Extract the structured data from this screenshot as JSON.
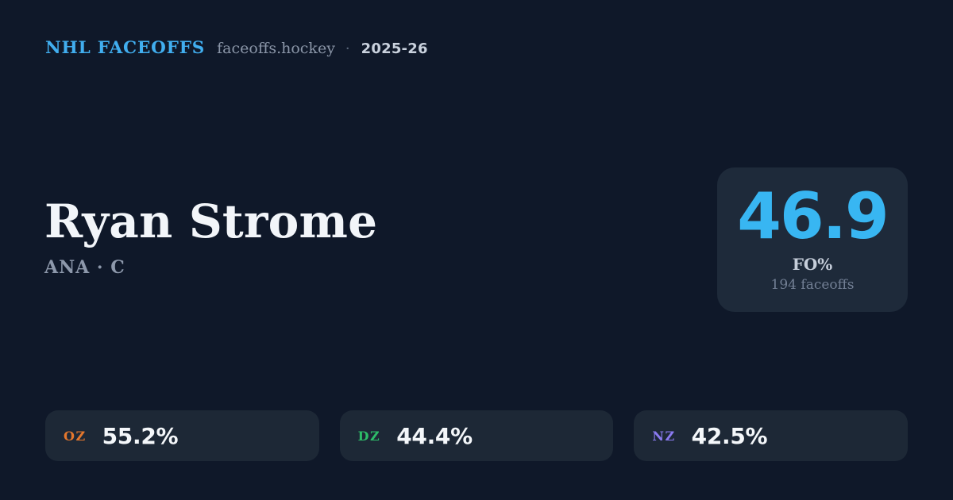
{
  "header": {
    "brand": "NHL FACEOFFS",
    "domain": "faceoffs.hockey",
    "separator": "·",
    "season": "2025-26"
  },
  "player": {
    "name": "Ryan Strome",
    "team": "ANA",
    "position": "C",
    "team_position": "ANA · C"
  },
  "fo_card": {
    "value": "46.9",
    "label": "FO%",
    "sub": "194 faceoffs"
  },
  "zones": [
    {
      "code": "OZ",
      "value": "55.2%",
      "color": "#e4772d"
    },
    {
      "code": "DZ",
      "value": "44.4%",
      "color": "#2dbd68"
    },
    {
      "code": "NZ",
      "value": "42.5%",
      "color": "#8a7af0"
    }
  ],
  "colors": {
    "background": "#0f1829",
    "card_background": "#1e2a3a",
    "pill_background": "#1d2836",
    "accent_blue": "#38b6f2",
    "brand_blue": "#41aeef",
    "text_primary": "#f2f5f9",
    "text_muted": "#8d98ab"
  }
}
